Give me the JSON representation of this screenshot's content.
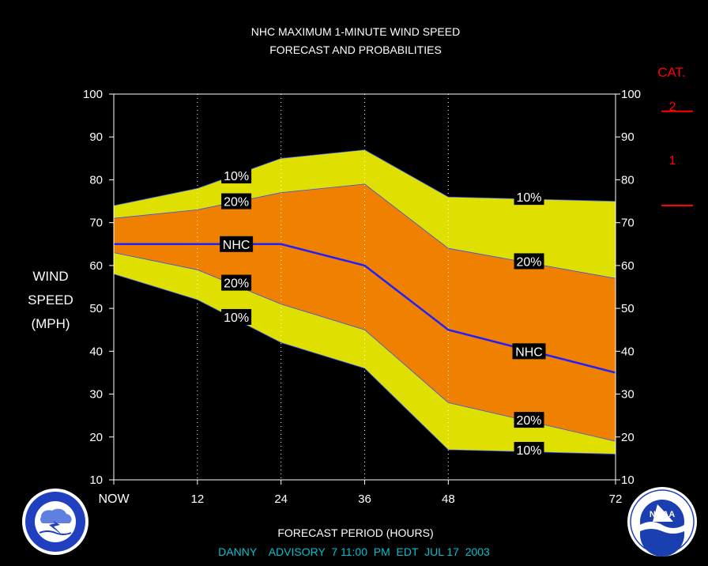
{
  "title_line1": "NHC MAXIMUM 1-MINUTE WIND SPEED",
  "title_line2": "FORECAST AND PROBABILITIES",
  "ylabel": [
    "WIND",
    "SPEED",
    "(MPH)"
  ],
  "xlabel": "FORECAST PERIOD (HOURS)",
  "advisory": "DANNY    ADVISORY  7 11:00  PM  EDT  JUL 17  2003",
  "cat": {
    "title": "CAT.",
    "labels": [
      "2",
      "1"
    ],
    "threshold_mph": [
      96,
      74
    ]
  },
  "colors": {
    "outer_band": "#e0e000",
    "inner_band": "#f08000",
    "nhc_line": "#2020ff",
    "cat_text": "#ff0000",
    "advisory_text": "#00c0d0",
    "background": "#000000"
  },
  "logos": {
    "left": "NWS logo",
    "right": "NOAA logo"
  },
  "chart_data": {
    "type": "area",
    "x_ticks": [
      0,
      12,
      24,
      36,
      48,
      72
    ],
    "x_tick_labels": [
      "NOW",
      "12",
      "24",
      "36",
      "48",
      "72"
    ],
    "y_ticks": [
      10,
      20,
      30,
      40,
      50,
      60,
      70,
      80,
      90,
      100
    ],
    "xlim": [
      0,
      72
    ],
    "ylim": [
      10,
      100
    ],
    "grid": "vertical dotted at 12, 24, 36, 48",
    "series": [
      {
        "name": "10%",
        "role": "upper",
        "x": [
          0,
          12,
          24,
          36,
          48,
          72
        ],
        "values": [
          74,
          78,
          85,
          87,
          76,
          75
        ]
      },
      {
        "name": "20%",
        "role": "upper",
        "x": [
          0,
          12,
          24,
          36,
          48,
          72
        ],
        "values": [
          71,
          73,
          77,
          79,
          64,
          57
        ]
      },
      {
        "name": "NHC",
        "x": [
          0,
          12,
          24,
          36,
          48,
          72
        ],
        "values": [
          65,
          65,
          65,
          60,
          45,
          35
        ]
      },
      {
        "name": "20%",
        "role": "lower",
        "x": [
          0,
          12,
          24,
          36,
          48,
          72
        ],
        "values": [
          63,
          59,
          51,
          45,
          28,
          19
        ]
      },
      {
        "name": "10%",
        "role": "lower",
        "x": [
          0,
          12,
          24,
          36,
          48,
          72
        ],
        "values": [
          58,
          52,
          42,
          36,
          17,
          16
        ]
      }
    ],
    "annotations": [
      {
        "text": "10%",
        "x": 16,
        "y": 81
      },
      {
        "text": "20%",
        "x": 16,
        "y": 75
      },
      {
        "text": "NHC",
        "x": 16,
        "y": 65
      },
      {
        "text": "20%",
        "x": 16,
        "y": 56
      },
      {
        "text": "10%",
        "x": 16,
        "y": 48
      },
      {
        "text": "10%",
        "x": 58,
        "y": 76
      },
      {
        "text": "20%",
        "x": 58,
        "y": 61
      },
      {
        "text": "NHC",
        "x": 58,
        "y": 40
      },
      {
        "text": "20%",
        "x": 58,
        "y": 24
      },
      {
        "text": "10%",
        "x": 58,
        "y": 17
      }
    ]
  }
}
